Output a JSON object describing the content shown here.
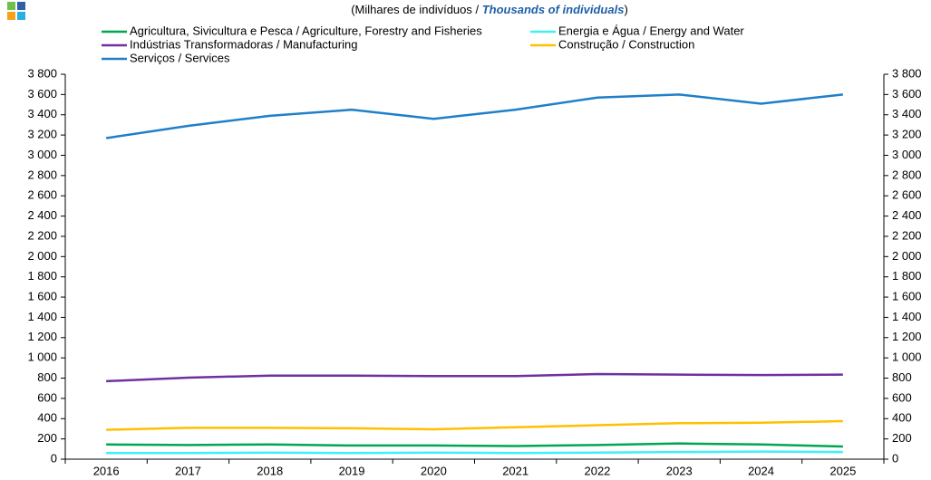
{
  "chart_data": {
    "type": "line",
    "subtitle": [
      "(Milhares de indivíduos / ",
      "Thousands of individuals",
      ")"
    ],
    "categories": [
      "2016",
      "2017",
      "2018",
      "2019",
      "2020",
      "2021",
      "2022",
      "2023",
      "2024",
      "2025"
    ],
    "series": [
      {
        "name": "Agricultura, Sivicultura e Pesca / Agriculture, Forestry and Fisheries",
        "color": "#00a651",
        "values": [
          145,
          140,
          145,
          135,
          135,
          130,
          140,
          155,
          145,
          125
        ]
      },
      {
        "name": "Energia e Água / Energy and Water",
        "color": "#3ff0f5",
        "values": [
          60,
          60,
          65,
          60,
          65,
          60,
          65,
          70,
          75,
          70
        ]
      },
      {
        "name": "Indústrias Transformadoras / Manufacturing",
        "color": "#7030a0",
        "values": [
          770,
          805,
          825,
          825,
          820,
          820,
          840,
          835,
          830,
          835
        ]
      },
      {
        "name": "Construção / Construction",
        "color": "#ffc000",
        "values": [
          290,
          310,
          310,
          305,
          295,
          315,
          335,
          355,
          360,
          375
        ]
      },
      {
        "name": "Serviços / Services",
        "color": "#1f7fc8",
        "values": [
          3170,
          3290,
          3390,
          3450,
          3360,
          3450,
          3570,
          3600,
          3510,
          3600
        ]
      }
    ],
    "ylim": [
      0,
      3800
    ],
    "yticks": [
      0,
      200,
      400,
      600,
      800,
      {
        "value": 1000,
        "label": "1 000"
      },
      {
        "value": 1200,
        "label": "1 200"
      },
      {
        "value": 1400,
        "label": "1 400"
      },
      {
        "value": 1600,
        "label": "1 600"
      },
      {
        "value": 1800,
        "label": "1 800"
      },
      {
        "value": 2000,
        "label": "2 000"
      },
      {
        "value": 2200,
        "label": "2 200"
      },
      {
        "value": 2400,
        "label": "2 400"
      },
      {
        "value": 2600,
        "label": "2 600"
      },
      {
        "value": 2800,
        "label": "2 800"
      },
      {
        "value": 3000,
        "label": "3 000"
      },
      {
        "value": 3200,
        "label": "3 200"
      },
      {
        "value": 3400,
        "label": "3 400"
      },
      {
        "value": 3600,
        "label": "3 600"
      },
      {
        "value": 3800,
        "label": "3 800"
      }
    ],
    "grid": false
  }
}
